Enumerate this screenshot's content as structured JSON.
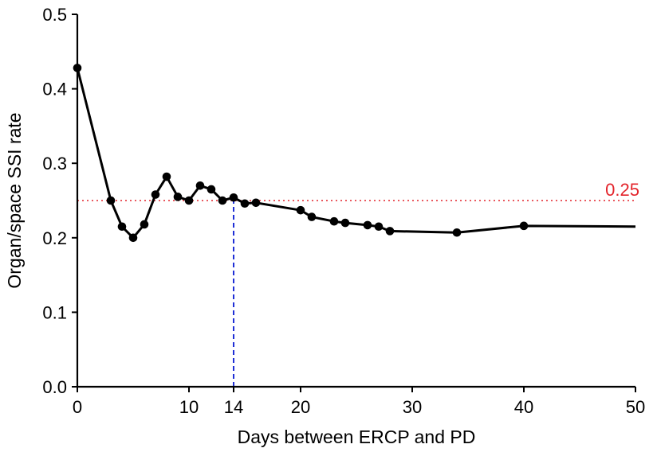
{
  "chart_data": {
    "type": "line",
    "title": "",
    "xlabel": "Days between ERCP and PD",
    "ylabel": "Organ/space SSI rate",
    "xlim": [
      0,
      50
    ],
    "ylim": [
      0,
      0.5
    ],
    "x_ticks": [
      0,
      10,
      14,
      20,
      30,
      40,
      50
    ],
    "x_tick_labels": [
      "0",
      "10",
      "14",
      "20",
      "30",
      "40",
      "50"
    ],
    "y_ticks": [
      0,
      0.1,
      0.2,
      0.3,
      0.4,
      0.5
    ],
    "y_tick_labels": [
      "0.0",
      "0.1",
      "0.2",
      "0.3",
      "0.4",
      "0.5"
    ],
    "grid": false,
    "legend": "none",
    "series": [
      {
        "color": "#000000",
        "points": [
          [
            0,
            0.428
          ],
          [
            3,
            0.25
          ],
          [
            4,
            0.215
          ],
          [
            5,
            0.2
          ],
          [
            6,
            0.218
          ],
          [
            7,
            0.258
          ],
          [
            8,
            0.282
          ],
          [
            9,
            0.255
          ],
          [
            10,
            0.25
          ],
          [
            11,
            0.27
          ],
          [
            12,
            0.265
          ],
          [
            13,
            0.25
          ],
          [
            14,
            0.254
          ],
          [
            15,
            0.246
          ],
          [
            16,
            0.247
          ],
          [
            20,
            0.237
          ],
          [
            21,
            0.228
          ],
          [
            23,
            0.222
          ],
          [
            24,
            0.22
          ],
          [
            26,
            0.217
          ],
          [
            27,
            0.215
          ],
          [
            28,
            0.209
          ],
          [
            34,
            0.207
          ],
          [
            40,
            0.216
          ]
        ],
        "line_extends_to": [
          50,
          0.215
        ]
      }
    ],
    "reference_lines": [
      {
        "orientation": "horizontal",
        "value": 0.25,
        "label": "0.25",
        "color": "#e3242b",
        "style": "dotted"
      },
      {
        "orientation": "vertical",
        "value": 14,
        "label": "",
        "color": "#1f2fd6",
        "style": "dashed",
        "from_y": 0,
        "to_y": 0.254
      }
    ]
  }
}
